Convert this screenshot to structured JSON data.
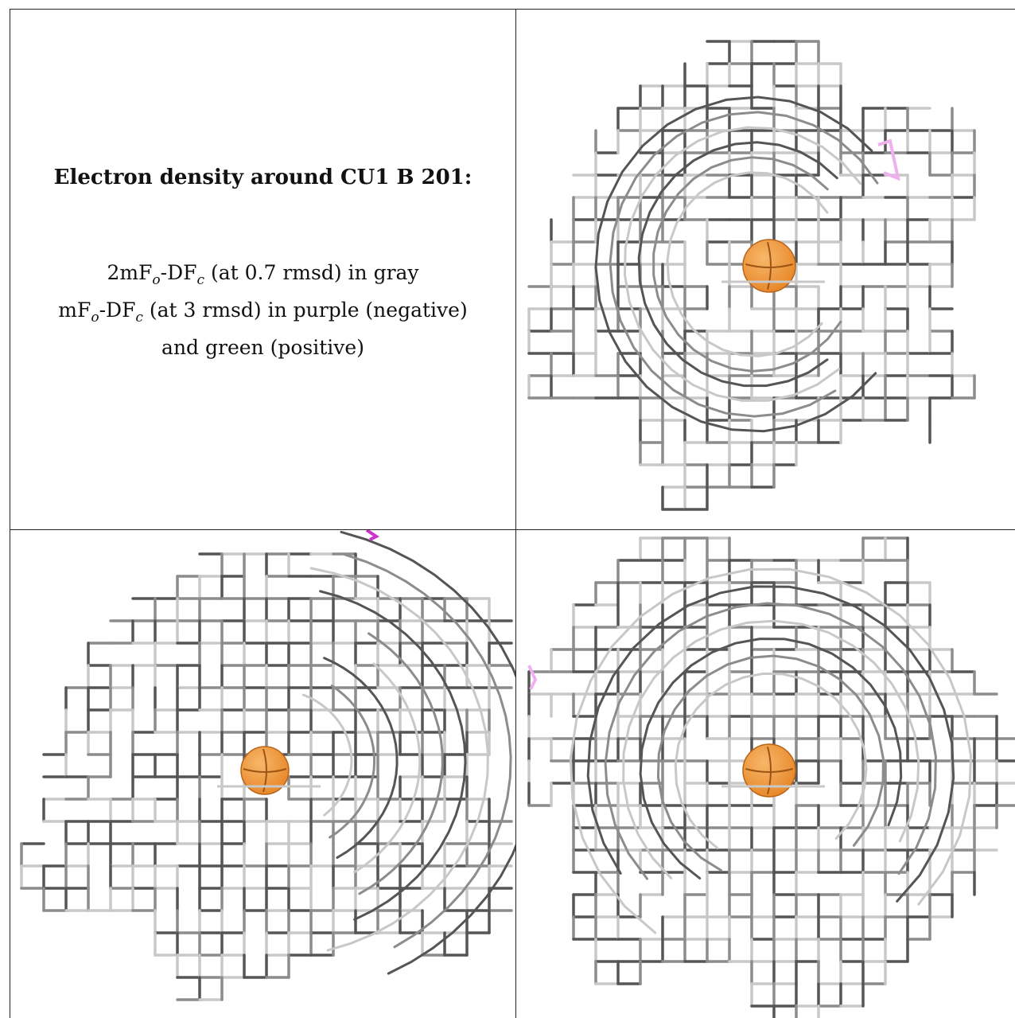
{
  "caption": {
    "title": "Electron density around CU1 B 201:",
    "line1_prefix": "2mF",
    "line1_sub1": "o",
    "line1_mid": "-DF",
    "line1_sub2": "c",
    "line1_suffix": " (at 0.7 rmsd) in gray",
    "line2_prefix": "mF",
    "line2_sub1": "o",
    "line2_mid": "-DF",
    "line2_sub2": "c",
    "line2_suffix": " (at 3 rmsd) in purple (negative)",
    "line3": "and green (positive)"
  },
  "colors": {
    "mesh_dark": "#555555",
    "mesh_mid": "#8c8c8c",
    "mesh_light": "#c8c8c8",
    "atom": "#e8892c",
    "atom_highlight": "#f7b76a",
    "negative_density": "#cc33cc",
    "negative_density_light": "#f0b0f0"
  },
  "panels": [
    {
      "name": "view-1",
      "atom_label": "CU1"
    },
    {
      "name": "view-2",
      "atom_label": "CU1"
    },
    {
      "name": "view-3",
      "atom_label": "CU1"
    }
  ]
}
